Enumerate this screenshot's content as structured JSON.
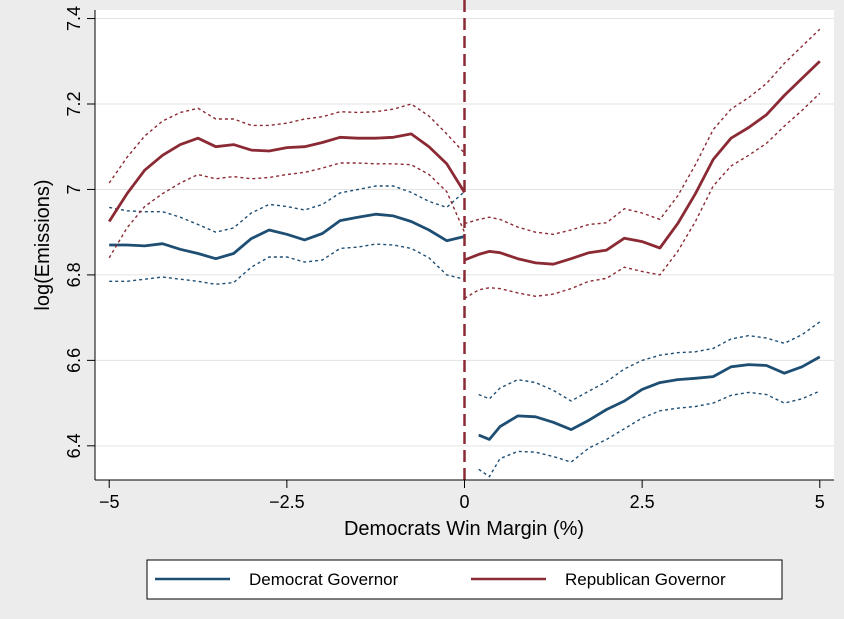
{
  "chart_data": {
    "type": "line",
    "xlabel": "Democrats Win Margin (%)",
    "ylabel": "log(Emissions)",
    "xlim": [
      -5.2,
      5.2
    ],
    "ylim": [
      6.32,
      7.42
    ],
    "xticks": [
      -5,
      -2.5,
      0,
      2.5,
      5
    ],
    "xtick_labels": [
      "−5",
      "−2.5",
      "0",
      "2.5",
      "5"
    ],
    "yticks": [
      6.4,
      6.6,
      6.8,
      7,
      7.2,
      7.4
    ],
    "ytick_labels": [
      "6.4",
      "6.6",
      "6.8",
      "7",
      "7.2",
      "7.4"
    ],
    "grid": "horizontal",
    "legend_position": "bottom",
    "cutoff_line": {
      "x": 0,
      "style": "dashed",
      "color": "#8b2a34"
    },
    "colors": {
      "democrat": "#1f4e73",
      "republican": "#8b2a34",
      "plot_background": "#ffffff",
      "outer_background": "#ececec"
    },
    "series": [
      {
        "name": "Democrat Governor",
        "color": "#1f4e73",
        "segments": [
          {
            "x": [
              -5,
              -4.75,
              -4.5,
              -4.25,
              -4,
              -3.75,
              -3.5,
              -3.25,
              -3,
              -2.75,
              -2.5,
              -2.25,
              -2,
              -1.75,
              -1.5,
              -1.25,
              -1,
              -0.75,
              -0.5,
              -0.25,
              0
            ],
            "y": [
              6.87,
              6.87,
              6.868,
              6.873,
              6.86,
              6.85,
              6.838,
              6.85,
              6.885,
              6.905,
              6.895,
              6.882,
              6.897,
              6.927,
              6.935,
              6.942,
              6.938,
              6.925,
              6.905,
              6.88,
              6.89
            ],
            "lower": [
              6.785,
              6.785,
              6.79,
              6.795,
              6.79,
              6.785,
              6.778,
              6.782,
              6.818,
              6.842,
              6.842,
              6.83,
              6.835,
              6.862,
              6.865,
              6.872,
              6.87,
              6.862,
              6.84,
              6.8,
              6.79
            ],
            "upper": [
              6.958,
              6.95,
              6.948,
              6.948,
              6.935,
              6.918,
              6.9,
              6.91,
              6.945,
              6.965,
              6.96,
              6.952,
              6.965,
              6.992,
              7.0,
              7.008,
              7.008,
              6.993,
              6.972,
              6.958,
              6.995
            ]
          },
          {
            "x": [
              0.2,
              0.35,
              0.5,
              0.75,
              1,
              1.25,
              1.5,
              1.75,
              2,
              2.25,
              2.5,
              2.75,
              3,
              3.25,
              3.5,
              3.75,
              4,
              4.25,
              4.5,
              4.75,
              5
            ],
            "y": [
              6.425,
              6.415,
              6.445,
              6.47,
              6.468,
              6.455,
              6.438,
              6.46,
              6.485,
              6.505,
              6.532,
              6.548,
              6.555,
              6.558,
              6.562,
              6.585,
              6.59,
              6.588,
              6.57,
              6.585,
              6.608
            ],
            "lower": [
              6.345,
              6.328,
              6.37,
              6.387,
              6.385,
              6.375,
              6.362,
              6.395,
              6.415,
              6.44,
              6.465,
              6.482,
              6.488,
              6.492,
              6.5,
              6.518,
              6.525,
              6.52,
              6.5,
              6.51,
              6.528
            ],
            "upper": [
              6.52,
              6.51,
              6.535,
              6.555,
              6.548,
              6.53,
              6.505,
              6.528,
              6.55,
              6.58,
              6.6,
              6.612,
              6.618,
              6.62,
              6.628,
              6.65,
              6.658,
              6.652,
              6.64,
              6.66,
              6.69
            ]
          }
        ]
      },
      {
        "name": "Republican Governor",
        "color": "#8b2a34",
        "segments": [
          {
            "x": [
              -5,
              -4.75,
              -4.5,
              -4.25,
              -4,
              -3.75,
              -3.5,
              -3.25,
              -3,
              -2.75,
              -2.5,
              -2.25,
              -2,
              -1.75,
              -1.5,
              -1.25,
              -1,
              -0.75,
              -0.5,
              -0.25,
              0
            ],
            "y": [
              6.925,
              6.99,
              7.045,
              7.08,
              7.105,
              7.12,
              7.1,
              7.105,
              7.092,
              7.09,
              7.098,
              7.1,
              7.11,
              7.122,
              7.12,
              7.12,
              7.122,
              7.13,
              7.1,
              7.06,
              6.993
            ],
            "lower": [
              6.84,
              6.91,
              6.96,
              6.99,
              7.015,
              7.035,
              7.025,
              7.03,
              7.025,
              7.028,
              7.035,
              7.04,
              7.05,
              7.062,
              7.062,
              7.06,
              7.06,
              7.058,
              7.035,
              6.995,
              6.9
            ],
            "upper": [
              7.015,
              7.075,
              7.125,
              7.16,
              7.18,
              7.19,
              7.165,
              7.165,
              7.15,
              7.15,
              7.155,
              7.165,
              7.17,
              7.182,
              7.18,
              7.182,
              7.188,
              7.2,
              7.172,
              7.13,
              7.085
            ]
          },
          {
            "x": [
              0,
              0.2,
              0.35,
              0.5,
              0.75,
              1,
              1.25,
              1.5,
              1.75,
              2,
              2.25,
              2.5,
              2.75,
              3,
              3.25,
              3.5,
              3.75,
              4,
              4.25,
              4.5,
              4.75,
              5
            ],
            "y": [
              6.835,
              6.848,
              6.855,
              6.852,
              6.838,
              6.828,
              6.825,
              6.838,
              6.852,
              6.858,
              6.886,
              6.878,
              6.863,
              6.92,
              6.99,
              7.07,
              7.12,
              7.145,
              7.175,
              7.22,
              7.26,
              7.3
            ],
            "lower": [
              6.745,
              6.765,
              6.77,
              6.768,
              6.758,
              6.75,
              6.755,
              6.768,
              6.785,
              6.792,
              6.818,
              6.808,
              6.8,
              6.855,
              6.925,
              7.008,
              7.055,
              7.08,
              7.108,
              7.148,
              7.185,
              7.225
            ],
            "upper": [
              6.92,
              6.93,
              6.935,
              6.93,
              6.912,
              6.9,
              6.895,
              6.905,
              6.918,
              6.922,
              6.955,
              6.945,
              6.93,
              6.985,
              7.058,
              7.14,
              7.188,
              7.215,
              7.248,
              7.295,
              7.335,
              7.375
            ]
          }
        ]
      }
    ]
  }
}
